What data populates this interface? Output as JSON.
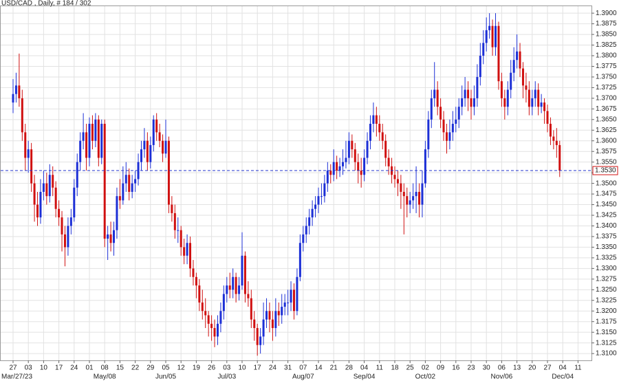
{
  "chart_data": {
    "type": "candlestick",
    "title": "USD/CAD , Daily, # 184 / 302",
    "categories": [
      "27",
      "03",
      "10",
      "17",
      "24",
      "01",
      "08",
      "15",
      "22",
      "29",
      "05",
      "12",
      "19",
      "26",
      "03",
      "10",
      "17",
      "24",
      "31",
      "07",
      "14",
      "21",
      "28",
      "04",
      "11",
      "18",
      "25",
      "02",
      "09",
      "16",
      "23",
      "30",
      "06",
      "13",
      "20",
      "27",
      "04",
      "11"
    ],
    "month_labels": [
      "Mar/27/23",
      null,
      null,
      null,
      null,
      null,
      "May/08",
      null,
      null,
      null,
      "Jun/05",
      null,
      null,
      null,
      "Jul/03",
      null,
      null,
      null,
      null,
      "Aug/07",
      null,
      null,
      null,
      "Sep/04",
      null,
      null,
      null,
      "Oct/02",
      null,
      null,
      null,
      null,
      "Nov/06",
      null,
      null,
      null,
      "Dec/04",
      null
    ],
    "ylim": [
      1.3084,
      1.3918
    ],
    "yticks": [
      {
        "value": 1.31,
        "label": "1.3100"
      },
      {
        "value": 1.3125,
        "label": "1.3125"
      },
      {
        "value": 1.315,
        "label": "1.3150"
      },
      {
        "value": 1.3175,
        "label": "1.3175"
      },
      {
        "value": 1.32,
        "label": "1.3200"
      },
      {
        "value": 1.3225,
        "label": "1.3225"
      },
      {
        "value": 1.325,
        "label": "1.3250"
      },
      {
        "value": 1.3275,
        "label": "1.3275"
      },
      {
        "value": 1.33,
        "label": "1.3300"
      },
      {
        "value": 1.3325,
        "label": "1.3325"
      },
      {
        "value": 1.335,
        "label": "1.3350"
      },
      {
        "value": 1.3375,
        "label": "1.3375"
      },
      {
        "value": 1.34,
        "label": "1.3400"
      },
      {
        "value": 1.3425,
        "label": "1.3425"
      },
      {
        "value": 1.345,
        "label": "1.3450"
      },
      {
        "value": 1.3475,
        "label": "1.3475"
      },
      {
        "value": 1.35,
        "label": "1.3500"
      },
      {
        "value": 1.3525,
        "label": "1.3525"
      },
      {
        "value": 1.355,
        "label": "1.3550"
      },
      {
        "value": 1.3575,
        "label": "1.3575"
      },
      {
        "value": 1.36,
        "label": "1.3600"
      },
      {
        "value": 1.3625,
        "label": "1.3625"
      },
      {
        "value": 1.365,
        "label": "1.3650"
      },
      {
        "value": 1.3675,
        "label": "1.3675"
      },
      {
        "value": 1.37,
        "label": "1.3700"
      },
      {
        "value": 1.3725,
        "label": "1.3725"
      },
      {
        "value": 1.375,
        "label": "1.3750"
      },
      {
        "value": 1.3775,
        "label": "1.3775"
      },
      {
        "value": 1.38,
        "label": "1.3800"
      },
      {
        "value": 1.3825,
        "label": "1.3825"
      },
      {
        "value": 1.385,
        "label": "1.3850"
      },
      {
        "value": 1.3875,
        "label": "1.3875"
      },
      {
        "value": 1.39,
        "label": "1.3900"
      }
    ],
    "grid": true,
    "up_color": "#1c2fd6",
    "down_color": "#d01010",
    "last_price": {
      "value": 1.353,
      "label": "1.3530"
    },
    "ohlc": [
      [
        1.369,
        1.3745,
        1.3665,
        1.371
      ],
      [
        1.371,
        1.376,
        1.369,
        1.373
      ],
      [
        1.373,
        1.3805,
        1.368,
        1.37
      ],
      [
        1.37,
        1.372,
        1.36,
        1.362
      ],
      [
        1.362,
        1.364,
        1.353,
        1.356
      ],
      [
        1.356,
        1.36,
        1.3525,
        1.358
      ],
      [
        1.358,
        1.3595,
        1.348,
        1.35
      ],
      [
        1.35,
        1.352,
        1.341,
        1.345
      ],
      [
        1.345,
        1.348,
        1.34,
        1.342
      ],
      [
        1.342,
        1.351,
        1.3405,
        1.348
      ],
      [
        1.348,
        1.353,
        1.346,
        1.35
      ],
      [
        1.35,
        1.3525,
        1.345,
        1.347
      ],
      [
        1.347,
        1.3545,
        1.3455,
        1.352
      ],
      [
        1.352,
        1.354,
        1.347,
        1.349
      ],
      [
        1.349,
        1.3505,
        1.342,
        1.344
      ],
      [
        1.344,
        1.346,
        1.34,
        1.342
      ],
      [
        1.342,
        1.3435,
        1.334,
        1.338
      ],
      [
        1.338,
        1.34,
        1.3305,
        1.335
      ],
      [
        1.335,
        1.342,
        1.333,
        1.34
      ],
      [
        1.34,
        1.344,
        1.338,
        1.342
      ],
      [
        1.342,
        1.351,
        1.341,
        1.349
      ],
      [
        1.349,
        1.357,
        1.347,
        1.355
      ],
      [
        1.355,
        1.362,
        1.353,
        1.36
      ],
      [
        1.36,
        1.3665,
        1.358,
        1.362
      ],
      [
        1.362,
        1.364,
        1.353,
        1.356
      ],
      [
        1.356,
        1.3655,
        1.354,
        1.364
      ],
      [
        1.364,
        1.366,
        1.358,
        1.36
      ],
      [
        1.36,
        1.3665,
        1.3585,
        1.365
      ],
      [
        1.365,
        1.366,
        1.354,
        1.356
      ],
      [
        1.356,
        1.365,
        1.3545,
        1.364
      ],
      [
        1.364,
        1.365,
        1.335,
        1.337
      ],
      [
        1.337,
        1.34,
        1.332,
        1.338
      ],
      [
        1.338,
        1.341,
        1.334,
        1.336
      ],
      [
        1.336,
        1.341,
        1.333,
        1.339
      ],
      [
        1.339,
        1.349,
        1.337,
        1.347
      ],
      [
        1.347,
        1.351,
        1.344,
        1.346
      ],
      [
        1.346,
        1.354,
        1.345,
        1.35
      ],
      [
        1.35,
        1.355,
        1.348,
        1.352
      ],
      [
        1.352,
        1.3535,
        1.346,
        1.348
      ],
      [
        1.348,
        1.352,
        1.3465,
        1.35
      ],
      [
        1.35,
        1.353,
        1.348,
        1.351
      ],
      [
        1.351,
        1.357,
        1.3495,
        1.355
      ],
      [
        1.355,
        1.36,
        1.353,
        1.358
      ],
      [
        1.358,
        1.363,
        1.356,
        1.36
      ],
      [
        1.36,
        1.362,
        1.353,
        1.355
      ],
      [
        1.355,
        1.361,
        1.3535,
        1.359
      ],
      [
        1.359,
        1.366,
        1.3575,
        1.365
      ],
      [
        1.365,
        1.3665,
        1.36,
        1.362
      ],
      [
        1.362,
        1.364,
        1.3585,
        1.36
      ],
      [
        1.36,
        1.3615,
        1.355,
        1.357
      ],
      [
        1.357,
        1.365,
        1.356,
        1.36
      ],
      [
        1.36,
        1.361,
        1.343,
        1.345
      ],
      [
        1.345,
        1.347,
        1.341,
        1.343
      ],
      [
        1.343,
        1.345,
        1.337,
        1.339
      ],
      [
        1.339,
        1.342,
        1.336,
        1.339
      ],
      [
        1.339,
        1.34,
        1.333,
        1.335
      ],
      [
        1.335,
        1.337,
        1.331,
        1.333
      ],
      [
        1.333,
        1.338,
        1.331,
        1.336
      ],
      [
        1.336,
        1.3375,
        1.328,
        1.33
      ],
      [
        1.33,
        1.332,
        1.326,
        1.328
      ],
      [
        1.328,
        1.329,
        1.323,
        1.326
      ],
      [
        1.326,
        1.3275,
        1.32,
        1.322
      ],
      [
        1.322,
        1.325,
        1.318,
        1.32
      ],
      [
        1.32,
        1.323,
        1.316,
        1.319
      ],
      [
        1.319,
        1.32,
        1.314,
        1.317
      ],
      [
        1.317,
        1.319,
        1.313,
        1.316
      ],
      [
        1.316,
        1.318,
        1.3115,
        1.314
      ],
      [
        1.314,
        1.319,
        1.312,
        1.317
      ],
      [
        1.317,
        1.322,
        1.315,
        1.32
      ],
      [
        1.32,
        1.326,
        1.318,
        1.324
      ],
      [
        1.324,
        1.328,
        1.322,
        1.326
      ],
      [
        1.326,
        1.329,
        1.323,
        1.325
      ],
      [
        1.325,
        1.33,
        1.323,
        1.328
      ],
      [
        1.328,
        1.329,
        1.322,
        1.324
      ],
      [
        1.324,
        1.328,
        1.3225,
        1.326
      ],
      [
        1.326,
        1.3385,
        1.325,
        1.333
      ],
      [
        1.333,
        1.334,
        1.322,
        1.324
      ],
      [
        1.324,
        1.327,
        1.321,
        1.323
      ],
      [
        1.323,
        1.325,
        1.316,
        1.318
      ],
      [
        1.318,
        1.32,
        1.313,
        1.316
      ],
      [
        1.316,
        1.317,
        1.3095,
        1.312
      ],
      [
        1.312,
        1.316,
        1.31,
        1.314
      ],
      [
        1.314,
        1.322,
        1.312,
        1.318
      ],
      [
        1.318,
        1.323,
        1.316,
        1.32
      ],
      [
        1.32,
        1.322,
        1.315,
        1.318
      ],
      [
        1.318,
        1.32,
        1.313,
        1.316
      ],
      [
        1.316,
        1.323,
        1.314,
        1.32
      ],
      [
        1.32,
        1.322,
        1.3165,
        1.319
      ],
      [
        1.319,
        1.324,
        1.317,
        1.321
      ],
      [
        1.321,
        1.324,
        1.319,
        1.322
      ],
      [
        1.322,
        1.325,
        1.319,
        1.322
      ],
      [
        1.322,
        1.327,
        1.32,
        1.325
      ],
      [
        1.325,
        1.3265,
        1.318,
        1.32
      ],
      [
        1.32,
        1.33,
        1.319,
        1.328
      ],
      [
        1.328,
        1.338,
        1.327,
        1.336
      ],
      [
        1.336,
        1.34,
        1.334,
        1.338
      ],
      [
        1.338,
        1.342,
        1.336,
        1.34
      ],
      [
        1.34,
        1.344,
        1.338,
        1.342
      ],
      [
        1.342,
        1.346,
        1.34,
        1.344
      ],
      [
        1.344,
        1.347,
        1.342,
        1.345
      ],
      [
        1.345,
        1.349,
        1.343,
        1.347
      ],
      [
        1.347,
        1.35,
        1.345,
        1.347
      ],
      [
        1.347,
        1.352,
        1.3455,
        1.35
      ],
      [
        1.35,
        1.355,
        1.348,
        1.353
      ],
      [
        1.353,
        1.3545,
        1.35,
        1.352
      ],
      [
        1.352,
        1.358,
        1.3505,
        1.355
      ],
      [
        1.355,
        1.3565,
        1.351,
        1.353
      ],
      [
        1.353,
        1.356,
        1.3515,
        1.354
      ],
      [
        1.354,
        1.358,
        1.352,
        1.355
      ],
      [
        1.355,
        1.36,
        1.3535,
        1.356
      ],
      [
        1.356,
        1.362,
        1.3545,
        1.36
      ],
      [
        1.36,
        1.3615,
        1.356,
        1.358
      ],
      [
        1.358,
        1.3595,
        1.353,
        1.355
      ],
      [
        1.355,
        1.357,
        1.35,
        1.353
      ],
      [
        1.353,
        1.356,
        1.349,
        1.352
      ],
      [
        1.352,
        1.358,
        1.3505,
        1.356
      ],
      [
        1.356,
        1.362,
        1.3545,
        1.36
      ],
      [
        1.36,
        1.366,
        1.358,
        1.364
      ],
      [
        1.364,
        1.369,
        1.362,
        1.366
      ],
      [
        1.366,
        1.368,
        1.361,
        1.364
      ],
      [
        1.364,
        1.366,
        1.36,
        1.362
      ],
      [
        1.362,
        1.364,
        1.358,
        1.36
      ],
      [
        1.36,
        1.3615,
        1.354,
        1.356
      ],
      [
        1.356,
        1.358,
        1.352,
        1.354
      ],
      [
        1.354,
        1.356,
        1.35,
        1.352
      ],
      [
        1.352,
        1.354,
        1.349,
        1.351
      ],
      [
        1.351,
        1.353,
        1.347,
        1.35
      ],
      [
        1.35,
        1.352,
        1.344,
        1.348
      ],
      [
        1.348,
        1.35,
        1.338,
        1.347
      ],
      [
        1.347,
        1.349,
        1.342,
        1.345
      ],
      [
        1.345,
        1.348,
        1.343,
        1.346
      ],
      [
        1.346,
        1.35,
        1.344,
        1.347
      ],
      [
        1.347,
        1.354,
        1.343,
        1.348
      ],
      [
        1.348,
        1.35,
        1.342,
        1.345
      ],
      [
        1.345,
        1.353,
        1.342,
        1.35
      ],
      [
        1.35,
        1.36,
        1.349,
        1.358
      ],
      [
        1.358,
        1.367,
        1.356,
        1.365
      ],
      [
        1.365,
        1.372,
        1.363,
        1.37
      ],
      [
        1.37,
        1.3785,
        1.368,
        1.372
      ],
      [
        1.372,
        1.374,
        1.366,
        1.368
      ],
      [
        1.368,
        1.37,
        1.363,
        1.365
      ],
      [
        1.365,
        1.367,
        1.36,
        1.362
      ],
      [
        1.362,
        1.364,
        1.357,
        1.36
      ],
      [
        1.36,
        1.365,
        1.358,
        1.362
      ],
      [
        1.362,
        1.367,
        1.36,
        1.364
      ],
      [
        1.364,
        1.368,
        1.362,
        1.365
      ],
      [
        1.365,
        1.37,
        1.363,
        1.368
      ],
      [
        1.368,
        1.373,
        1.366,
        1.37
      ],
      [
        1.37,
        1.375,
        1.368,
        1.372
      ],
      [
        1.372,
        1.374,
        1.367,
        1.37
      ],
      [
        1.37,
        1.372,
        1.365,
        1.368
      ],
      [
        1.368,
        1.373,
        1.366,
        1.37
      ],
      [
        1.37,
        1.378,
        1.368,
        1.375
      ],
      [
        1.375,
        1.383,
        1.373,
        1.38
      ],
      [
        1.38,
        1.386,
        1.378,
        1.383
      ],
      [
        1.383,
        1.389,
        1.381,
        1.386
      ],
      [
        1.386,
        1.39,
        1.384,
        1.387
      ],
      [
        1.387,
        1.3885,
        1.38,
        1.382
      ],
      [
        1.382,
        1.39,
        1.38,
        1.387
      ],
      [
        1.387,
        1.388,
        1.372,
        1.374
      ],
      [
        1.374,
        1.376,
        1.368,
        1.37
      ],
      [
        1.37,
        1.372,
        1.365,
        1.368
      ],
      [
        1.368,
        1.374,
        1.366,
        1.372
      ],
      [
        1.372,
        1.379,
        1.37,
        1.376
      ],
      [
        1.376,
        1.382,
        1.374,
        1.379
      ],
      [
        1.379,
        1.385,
        1.377,
        1.381
      ],
      [
        1.381,
        1.383,
        1.375,
        1.377
      ],
      [
        1.377,
        1.3785,
        1.37,
        1.373
      ],
      [
        1.373,
        1.376,
        1.369,
        1.372
      ],
      [
        1.372,
        1.374,
        1.366,
        1.368
      ],
      [
        1.368,
        1.372,
        1.366,
        1.37
      ],
      [
        1.37,
        1.374,
        1.368,
        1.372
      ],
      [
        1.372,
        1.3735,
        1.366,
        1.368
      ],
      [
        1.368,
        1.371,
        1.3665,
        1.369
      ],
      [
        1.369,
        1.37,
        1.364,
        1.367
      ],
      [
        1.367,
        1.3685,
        1.362,
        1.364
      ],
      [
        1.364,
        1.3655,
        1.359,
        1.361
      ],
      [
        1.361,
        1.3625,
        1.358,
        1.36
      ],
      [
        1.36,
        1.363,
        1.356,
        1.359
      ],
      [
        1.359,
        1.36,
        1.3515,
        1.353
      ]
    ]
  }
}
